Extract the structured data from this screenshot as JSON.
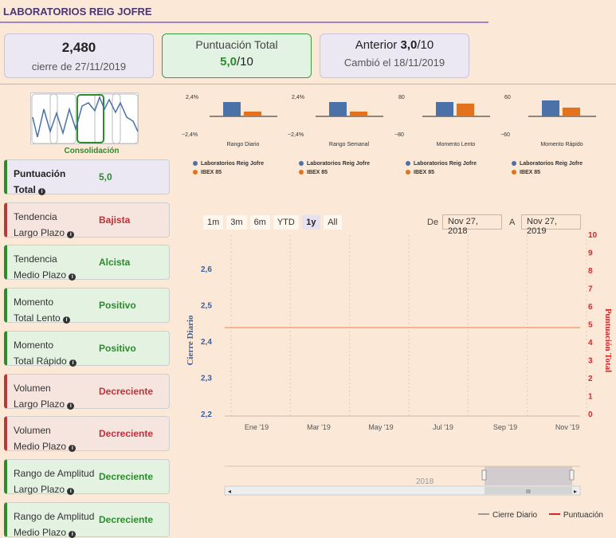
{
  "title": "LABORATORIOS REIG JOFRE",
  "cards": {
    "price": {
      "value": "2,480",
      "sub": "cierre de 27/11/2019"
    },
    "score": {
      "label": "Puntuación Total",
      "value": "5,0",
      "suffix": "/10"
    },
    "prev": {
      "label": "Anterior ",
      "value": "3,0",
      "suffix": "/10",
      "sub": "Cambió el 18/11/2019"
    }
  },
  "consolidation": {
    "label": "Consolidación"
  },
  "indicators": [
    {
      "line1": "Puntuación",
      "line2": "Total",
      "status": "5,0",
      "tone": "blue"
    },
    {
      "line1": "Tendencia",
      "line2": "Largo Plazo",
      "status": "Bajista",
      "tone": "red"
    },
    {
      "line1": "Tendencia",
      "line2": "Medio Plazo",
      "status": "Alcista",
      "tone": "green"
    },
    {
      "line1": "Momento",
      "line2": "Total Lento",
      "status": "Positivo",
      "tone": "green"
    },
    {
      "line1": "Momento",
      "line2": "Total Rápido",
      "status": "Positivo",
      "tone": "green"
    },
    {
      "line1": "Volumen",
      "line2": "Largo Plazo",
      "status": "Decreciente",
      "tone": "red"
    },
    {
      "line1": "Volumen",
      "line2": "Medio Plazo",
      "status": "Decreciente",
      "tone": "red"
    },
    {
      "line1": "Rango de Amplitud",
      "line2": "Largo Plazo",
      "status": "Decreciente",
      "tone": "green"
    },
    {
      "line1": "Rango de Amplitud",
      "line2": "Medio Plazo",
      "status": "Decreciente",
      "tone": "green"
    }
  ],
  "mini_charts": [
    {
      "title": "Rango Diario",
      "ytop": "2,4%",
      "ybot": "−2,4%",
      "values": [
        0.9,
        0.3
      ]
    },
    {
      "title": "Rango Semanal",
      "ytop": "2,4%",
      "ybot": "−2,4%",
      "values": [
        0.9,
        0.3
      ]
    },
    {
      "title": "Momento Lento",
      "ytop": "80",
      "ybot": "−80",
      "values": [
        0.9,
        0.8
      ]
    },
    {
      "title": "Momento Rápido",
      "ytop": "60",
      "ybot": "−60",
      "values": [
        1.0,
        0.55
      ]
    }
  ],
  "mini_legend": {
    "a": "Laboratorios Reig Jofre",
    "b": "IBEX 85"
  },
  "colors": {
    "blue": "#4a72a8",
    "orange": "#e2731c",
    "red": "#d9262c",
    "accent": "#4a3577"
  },
  "range_buttons": [
    "1m",
    "3m",
    "6m",
    "YTD",
    "1y",
    "All"
  ],
  "range_active": "1y",
  "date_from_label": "De",
  "date_from": "Nov 27, 2018",
  "date_to_label": "A",
  "date_to": "Nov 27, 2019",
  "navigator_year": "2018",
  "legend": {
    "a": "Cierre Diario",
    "b": "Puntuación"
  },
  "chart_data": {
    "type": "line",
    "xlabels": [
      "Ene '19",
      "Mar '19",
      "May '19",
      "Jul '19",
      "Sep '19",
      "Nov '19"
    ],
    "left_axis": {
      "label": "Cierre Diario",
      "ticks": [
        "2,2",
        "2,3",
        "2,4",
        "2,5",
        "2,6"
      ]
    },
    "right_axis": {
      "label": "Puntuación Total",
      "ticks": [
        "0",
        "1",
        "2",
        "3",
        "4",
        "5",
        "6",
        "7",
        "8",
        "9",
        "10"
      ],
      "ylim": [
        0,
        10
      ]
    },
    "series": [
      {
        "name": "Cierre Diario",
        "values": []
      },
      {
        "name": "Puntuación",
        "values": [
          4.8
        ]
      }
    ]
  }
}
